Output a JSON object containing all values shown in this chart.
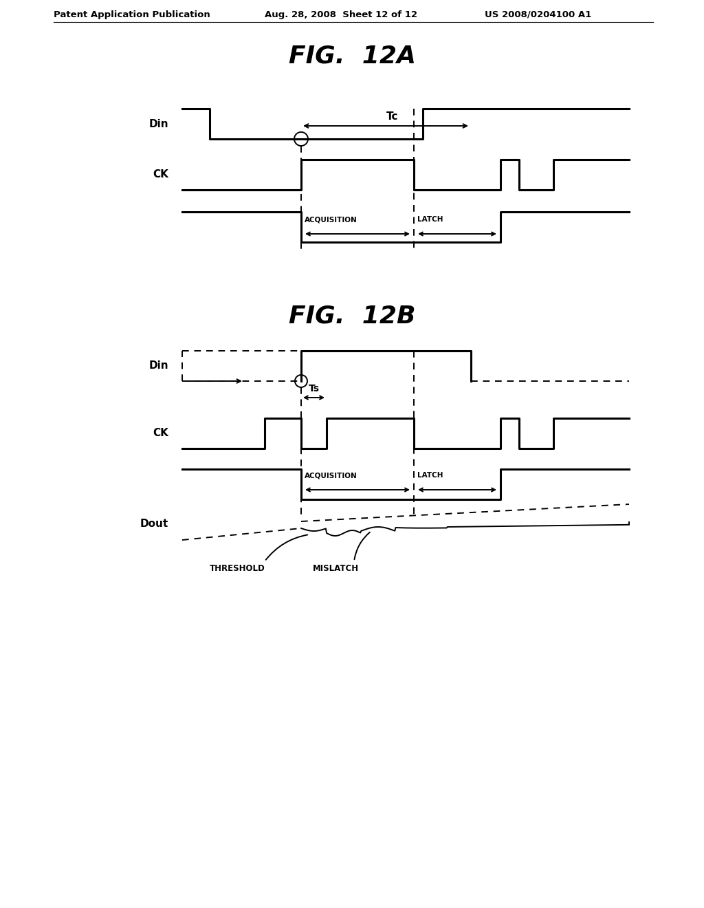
{
  "bg_color": "#ffffff",
  "header_text": "Patent Application Publication",
  "header_date": "Aug. 28, 2008  Sheet 12 of 12",
  "header_patent": "US 2008/0204100 A1",
  "fig12a_title": "FIG.  12A",
  "fig12b_title": "FIG.  12B",
  "line_color": "#000000",
  "lw": 2.2,
  "lw_thin": 1.4
}
